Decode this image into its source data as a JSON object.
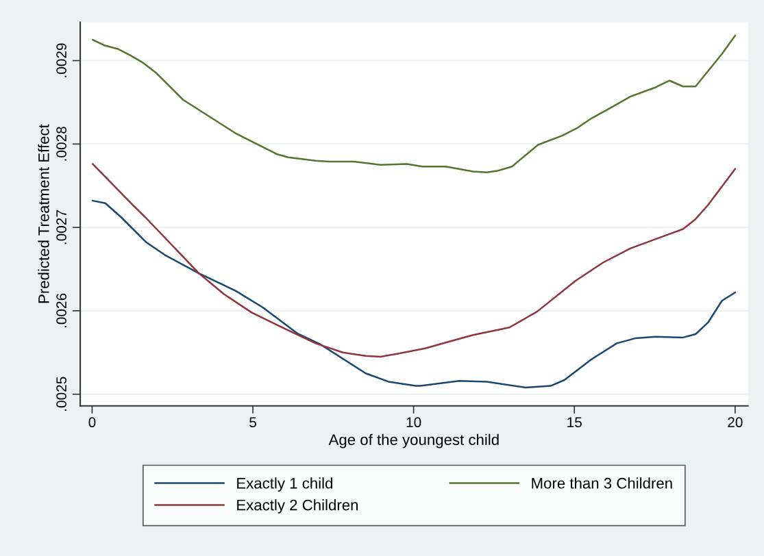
{
  "chart_data": {
    "type": "line",
    "xlabel": "Age of the youngest child",
    "ylabel": "Predicted Treatment Effect",
    "xlim": [
      -0.37,
      20.4
    ],
    "ylim": [
      0.002486,
      0.002946
    ],
    "xticks": [
      0,
      5,
      10,
      15,
      20
    ],
    "yticks": [
      {
        "value": 0.0025,
        "label": ".0025"
      },
      {
        "value": 0.0026,
        "label": ".0026"
      },
      {
        "value": 0.0027,
        "label": ".0027"
      },
      {
        "value": 0.0028,
        "label": ".0028"
      },
      {
        "value": 0.0029,
        "label": ".0029"
      }
    ],
    "grid": "y",
    "legend": "bottom",
    "marker": "none",
    "line_style": "solid",
    "series": [
      {
        "name": "Exactly 1 child",
        "color": "#1a476f",
        "x": [
          0.02,
          0.41,
          0.91,
          1.69,
          2.26,
          3.32,
          4.46,
          5.31,
          6.38,
          7.09,
          8.51,
          9.22,
          10.07,
          10.21,
          11.42,
          12.27,
          13.48,
          14.26,
          14.69,
          15.54,
          16.32,
          16.89,
          17.53,
          18.38,
          18.77,
          19.16,
          19.59,
          20
        ],
        "values": [
          0.002732,
          0.002729,
          0.002712,
          0.002682,
          0.002667,
          0.002645,
          0.002624,
          0.002604,
          0.002573,
          0.00256,
          0.002525,
          0.002515,
          0.00251,
          0.00251,
          0.002516,
          0.002515,
          0.002508,
          0.00251,
          0.002517,
          0.002542,
          0.002561,
          0.002567,
          0.002569,
          0.002568,
          0.002572,
          0.002586,
          0.002612,
          0.002622
        ]
      },
      {
        "name": "Exactly 2 Children",
        "color": "#90353b",
        "x": [
          0.02,
          1.26,
          1.66,
          3.32,
          4.1,
          4.96,
          5.81,
          6.95,
          7.8,
          8.51,
          8.97,
          9.57,
          10.36,
          11,
          11.85,
          12.98,
          13.84,
          15.04,
          15.9,
          16.75,
          17.88,
          18.38,
          18.77,
          19.16,
          20
        ],
        "values": [
          0.002776,
          0.002727,
          0.002712,
          0.002645,
          0.00262,
          0.002598,
          0.002582,
          0.002561,
          0.00255,
          0.002546,
          0.002545,
          0.002549,
          0.002555,
          0.002562,
          0.002571,
          0.00258,
          0.002599,
          0.002636,
          0.002658,
          0.002675,
          0.002691,
          0.002698,
          0.00271,
          0.002727,
          0.00277
        ]
      },
      {
        "name": "More than 3 Children",
        "color": "#55752f",
        "x": [
          0.02,
          0.4,
          0.8,
          1.2,
          1.6,
          2.0,
          2.83,
          4.5,
          5.74,
          6.1,
          6.95,
          7.37,
          8.15,
          8.97,
          9.79,
          10.28,
          11.0,
          11.85,
          12.27,
          12.63,
          13.06,
          13.87,
          14.62,
          15.08,
          15.54,
          15.97,
          16.75,
          17.53,
          17.96,
          18.38,
          18.77,
          19.59,
          20
        ],
        "values": [
          0.002925,
          0.002918,
          0.002914,
          0.002906,
          0.002897,
          0.002885,
          0.002853,
          0.002812,
          0.002788,
          0.002784,
          0.00278,
          0.002779,
          0.002779,
          0.002775,
          0.002776,
          0.002773,
          0.002773,
          0.002767,
          0.002766,
          0.002768,
          0.002773,
          0.002799,
          0.00281,
          0.002819,
          0.002831,
          0.00284,
          0.002857,
          0.002868,
          0.002876,
          0.002869,
          0.002869,
          0.002908,
          0.00293
        ]
      }
    ]
  }
}
